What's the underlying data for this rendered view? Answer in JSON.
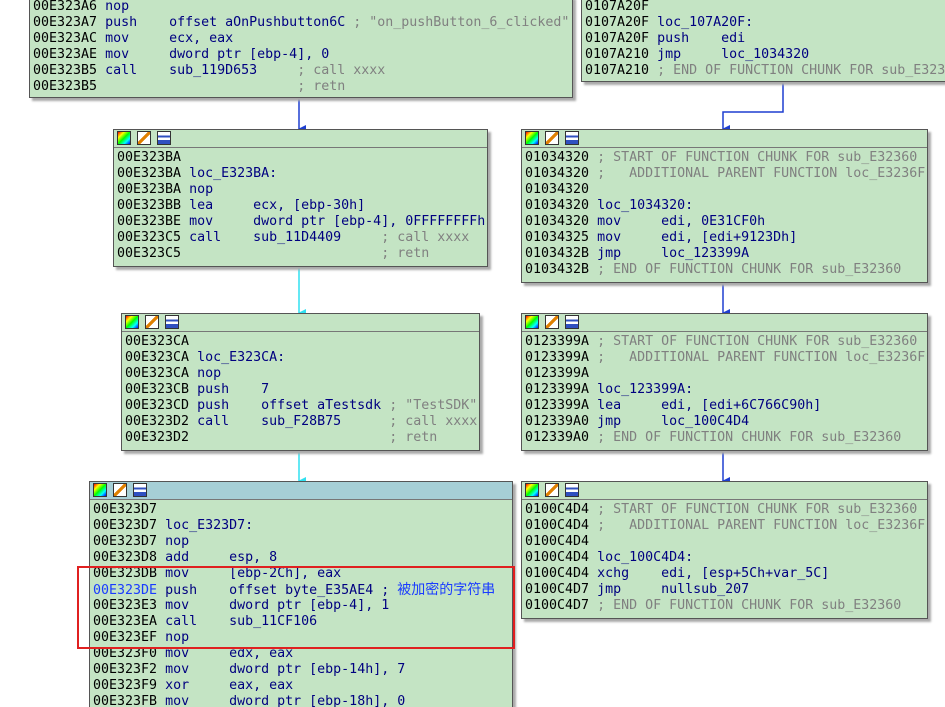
{
  "blocks": [
    {
      "lines": [
        {
          "addr": "00E323A6",
          "code": "nop"
        },
        {
          "addr": "00E323A7",
          "code": "push    offset aOnPushbutton6C",
          "comment": "; \"on_pushButton_6_clicked\""
        },
        {
          "addr": "00E323AC",
          "code": "mov     ecx, eax"
        },
        {
          "addr": "00E323AE",
          "code": "mov     dword ptr [ebp-4], 0"
        },
        {
          "addr": "00E323B5",
          "code": "call    sub_119D653",
          "comment": "; call xxxx"
        },
        {
          "addr": "00E323B5",
          "comment": "                        ; retn"
        }
      ]
    },
    {
      "lines": [
        {
          "addr": "0107A20F"
        },
        {
          "addr": "0107A20F",
          "code": "loc_107A20F:"
        },
        {
          "addr": "0107A20F",
          "code": "push    edi"
        },
        {
          "addr": "0107A210",
          "code": "jmp     loc_1034320"
        },
        {
          "addr": "0107A210",
          "comment": "; END OF FUNCTION CHUNK FOR sub_E323"
        }
      ]
    },
    {
      "lines": [
        {
          "addr": "00E323BA"
        },
        {
          "addr": "00E323BA",
          "code": "loc_E323BA:"
        },
        {
          "addr": "00E323BA",
          "code": "nop"
        },
        {
          "addr": "00E323BB",
          "code": "lea     ecx, [ebp-30h]"
        },
        {
          "addr": "00E323BE",
          "code": "mov     dword ptr [ebp-4], 0FFFFFFFFh"
        },
        {
          "addr": "00E323C5",
          "code": "call    sub_11D4409",
          "comment": "; call xxxx"
        },
        {
          "addr": "00E323C5",
          "comment": "                        ; retn"
        }
      ]
    },
    {
      "lines": [
        {
          "addr": "01034320",
          "comment": "; START OF FUNCTION CHUNK FOR sub_E32360"
        },
        {
          "addr": "01034320",
          "comment": ";   ADDITIONAL PARENT FUNCTION loc_E3236F"
        },
        {
          "addr": "01034320"
        },
        {
          "addr": "01034320",
          "code": "loc_1034320:"
        },
        {
          "addr": "01034320",
          "code": "mov     edi, 0E31CF0h"
        },
        {
          "addr": "01034325",
          "code": "mov     edi, [edi+9123Dh]"
        },
        {
          "addr": "0103432B",
          "code": "jmp     loc_123399A"
        },
        {
          "addr": "0103432B",
          "comment": "; END OF FUNCTION CHUNK FOR sub_E32360"
        }
      ]
    },
    {
      "lines": [
        {
          "addr": "00E323CA"
        },
        {
          "addr": "00E323CA",
          "code": "loc_E323CA:"
        },
        {
          "addr": "00E323CA",
          "code": "nop"
        },
        {
          "addr": "00E323CB",
          "code": "push    7"
        },
        {
          "addr": "00E323CD",
          "code": "push    offset aTestsdk",
          "comment": "; \"TestSDK\""
        },
        {
          "addr": "00E323D2",
          "code": "call    sub_F28B75",
          "comment": "; call xxxx"
        },
        {
          "addr": "00E323D2",
          "comment": "                        ; retn"
        }
      ]
    },
    {
      "lines": [
        {
          "addr": "0123399A",
          "comment": "; START OF FUNCTION CHUNK FOR sub_E32360"
        },
        {
          "addr": "0123399A",
          "comment": ";   ADDITIONAL PARENT FUNCTION loc_E3236F"
        },
        {
          "addr": "0123399A"
        },
        {
          "addr": "0123399A",
          "code": "loc_123399A:"
        },
        {
          "addr": "0123399A",
          "code": "lea     edi, [edi+6C766C90h]"
        },
        {
          "addr": "012339A0",
          "code": "jmp     loc_100C4D4"
        },
        {
          "addr": "012339A0",
          "comment": "; END OF FUNCTION CHUNK FOR sub_E32360"
        }
      ]
    },
    {
      "lines": [
        {
          "addr": "00E323D7"
        },
        {
          "addr": "00E323D7",
          "code": "loc_E323D7:"
        },
        {
          "addr": "00E323D7",
          "code": "nop"
        },
        {
          "addr": "00E323D8",
          "code": "add     esp, 8"
        },
        {
          "addr": "00E323DB",
          "code": "mov     [ebp-2Ch], eax"
        },
        {
          "addr": "00E323DE",
          "addr_color": "#1a3cff",
          "code": "push    offset byte_E35AE4 ;",
          "comment": "被加密的字符串",
          "comment_color": "#1a3cff"
        },
        {
          "addr": "00E323E3",
          "code": "mov     dword ptr [ebp-4], 1"
        },
        {
          "addr": "00E323EA",
          "code": "call    sub_11CF106"
        },
        {
          "addr": "00E323EF",
          "code": "nop"
        },
        {
          "addr": "00E323F0",
          "code": "mov     edx, eax"
        },
        {
          "addr": "00E323F2",
          "code": "mov     dword ptr [ebp-14h], 7"
        },
        {
          "addr": "00E323F9",
          "code": "xor     eax, eax"
        },
        {
          "addr": "00E323FB",
          "code": "mov     dword ptr [ebp-18h], 0"
        }
      ]
    },
    {
      "lines": [
        {
          "addr": "0100C4D4",
          "comment": "; START OF FUNCTION CHUNK FOR sub_E32360"
        },
        {
          "addr": "0100C4D4",
          "comment": ";   ADDITIONAL PARENT FUNCTION loc_E3236F"
        },
        {
          "addr": "0100C4D4"
        },
        {
          "addr": "0100C4D4",
          "code": "loc_100C4D4:"
        },
        {
          "addr": "0100C4D4",
          "code": "xchg    edi, [esp+5Ch+var_5C]"
        },
        {
          "addr": "0100C4D7",
          "code": "jmp     nullsub_207"
        },
        {
          "addr": "0100C4D7",
          "comment": "; END OF FUNCTION CHUNK FOR sub_E32360"
        }
      ]
    }
  ]
}
